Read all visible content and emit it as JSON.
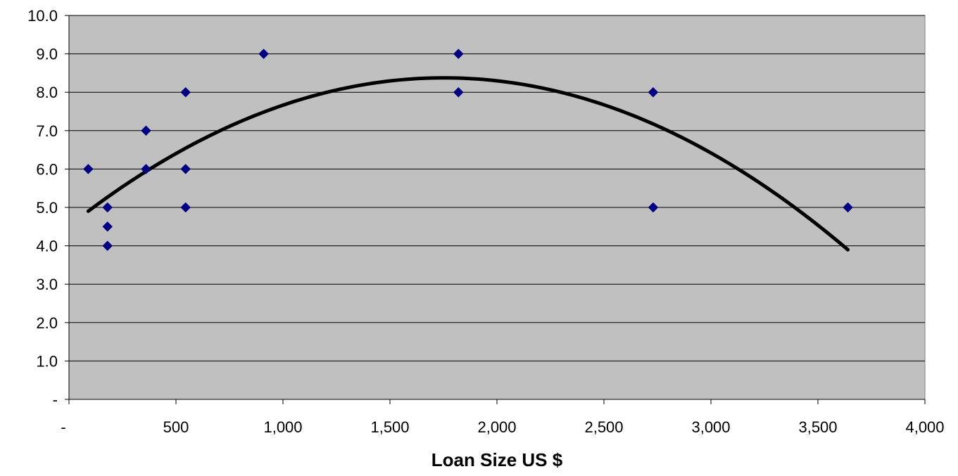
{
  "chart_data": {
    "type": "scatter",
    "xlabel": "Loan Size US $",
    "ylabel": "",
    "xlim": [
      0,
      4000
    ],
    "ylim": [
      0,
      10
    ],
    "x_ticks": [
      {
        "value": 0,
        "label": "-"
      },
      {
        "value": 500,
        "label": "500"
      },
      {
        "value": 1000,
        "label": "1,000"
      },
      {
        "value": 1500,
        "label": "1,500"
      },
      {
        "value": 2000,
        "label": "2,000"
      },
      {
        "value": 2500,
        "label": "2,500"
      },
      {
        "value": 3000,
        "label": "3,000"
      },
      {
        "value": 3500,
        "label": "3,500"
      },
      {
        "value": 4000,
        "label": "4,000"
      }
    ],
    "y_ticks": [
      {
        "value": 0,
        "label": "-"
      },
      {
        "value": 1,
        "label": "1.0"
      },
      {
        "value": 2,
        "label": "2.0"
      },
      {
        "value": 3,
        "label": "3.0"
      },
      {
        "value": 4,
        "label": "4.0"
      },
      {
        "value": 5,
        "label": "5.0"
      },
      {
        "value": 6,
        "label": "6.0"
      },
      {
        "value": 7,
        "label": "7.0"
      },
      {
        "value": 8,
        "label": "8.0"
      },
      {
        "value": 9,
        "label": "9.0"
      },
      {
        "value": 10,
        "label": "10.0"
      }
    ],
    "grid": "horizontal",
    "plot_background": "#c0c0c0",
    "series": [
      {
        "marker": "diamond",
        "color": "#000080",
        "points": [
          {
            "x": 90,
            "y": 6.0
          },
          {
            "x": 180,
            "y": 5.0
          },
          {
            "x": 180,
            "y": 4.5
          },
          {
            "x": 180,
            "y": 4.0
          },
          {
            "x": 360,
            "y": 7.0
          },
          {
            "x": 360,
            "y": 6.0
          },
          {
            "x": 545,
            "y": 8.0
          },
          {
            "x": 545,
            "y": 6.0
          },
          {
            "x": 545,
            "y": 5.0
          },
          {
            "x": 910,
            "y": 9.0
          },
          {
            "x": 1820,
            "y": 9.0
          },
          {
            "x": 1820,
            "y": 8.0
          },
          {
            "x": 2730,
            "y": 8.0
          },
          {
            "x": 2730,
            "y": 5.0
          },
          {
            "x": 3640,
            "y": 5.0
          }
        ]
      }
    ],
    "trendline": {
      "type": "polynomial",
      "order": 2,
      "color": "#000000",
      "x_range": [
        90,
        3640
      ],
      "coefficients": [
        4.5147,
        0.0044052,
        -1.2568e-06
      ]
    }
  }
}
